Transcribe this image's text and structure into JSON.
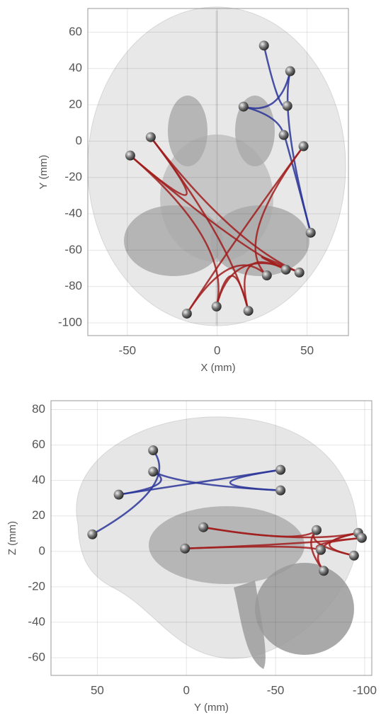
{
  "chart_data": [
    {
      "type": "scatter",
      "xlabel": "X (mm)",
      "ylabel": "Y (mm)",
      "xlim": [
        -72,
        73
      ],
      "ylim": [
        -107,
        73
      ],
      "xticks": [
        -50,
        0,
        50
      ],
      "yticks": [
        -100,
        -80,
        -60,
        -40,
        -20,
        0,
        20,
        40,
        60
      ],
      "grid": true,
      "x_reversed": false,
      "series": [
        {
          "color": "#2a3598",
          "x": [
            26,
            40.6,
            14.6,
            39,
            37,
            52
          ],
          "y": [
            52.6,
            38.5,
            19,
            19.4,
            3.4,
            -50.4
          ]
        },
        {
          "color": "#a11d1d",
          "x": [
            48,
            -37,
            -48.4,
            27.6,
            38.2,
            45.7,
            -16.9,
            -0.4,
            17.3
          ],
          "y": [
            -2.8,
            2.2,
            -7.9,
            -73.9,
            -70.7,
            -72.3,
            -94.9,
            -91,
            -93.4
          ]
        }
      ]
    },
    {
      "type": "scatter",
      "xlabel": "Y (mm)",
      "ylabel": "Z (mm)",
      "xlim": [
        76,
        -104
      ],
      "ylim": [
        -70,
        85
      ],
      "xticks": [
        50,
        0,
        -50,
        -100
      ],
      "yticks": [
        -60,
        -40,
        -20,
        0,
        20,
        40,
        60,
        80
      ],
      "grid": true,
      "x_reversed": true,
      "series": [
        {
          "color": "#2a3598",
          "x": [
            18.7,
            18.7,
            38,
            52.8,
            -52.8,
            -52.8
          ],
          "y": [
            57,
            45,
            32,
            9.6,
            46,
            34.4
          ]
        },
        {
          "color": "#a11d1d",
          "x": [
            0.8,
            -9.5,
            -73,
            -75.4,
            -77,
            -96.4,
            -98.4,
            -94
          ],
          "y": [
            1.6,
            13.6,
            12,
            0.8,
            -11,
            10.4,
            7.6,
            -2.4
          ]
        }
      ]
    }
  ]
}
